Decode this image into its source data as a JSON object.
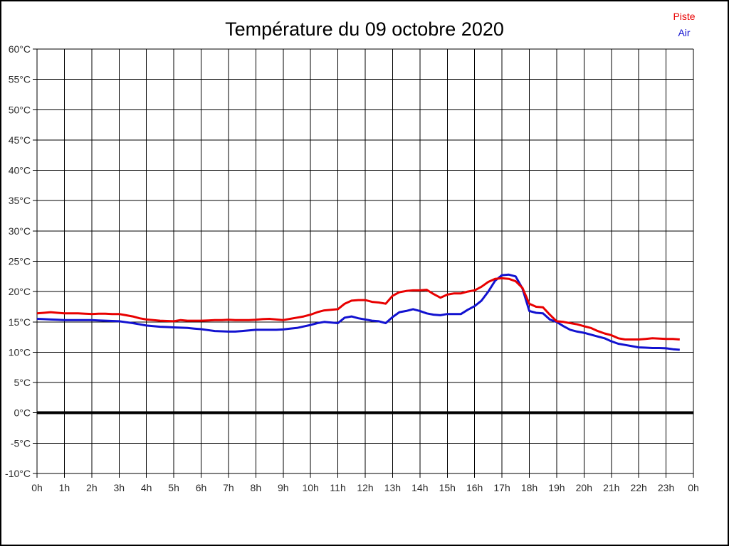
{
  "page": {
    "title": "Température du 09 octobre 2020"
  },
  "legend": {
    "items": [
      {
        "label": "Piste",
        "color": "#e80000"
      },
      {
        "label": "Air",
        "color": "#1212d0"
      }
    ]
  },
  "chart_data": {
    "type": "line",
    "title": "Température du 09 octobre 2020",
    "xlabel": "",
    "ylabel": "",
    "xlim": [
      0,
      24
    ],
    "ylim": [
      -10,
      60
    ],
    "grid": true,
    "legend_position": "top-right",
    "zero_line": {
      "value": 0,
      "emphasized": true
    },
    "x_ticks": {
      "values": [
        0,
        1,
        2,
        3,
        4,
        5,
        6,
        7,
        8,
        9,
        10,
        11,
        12,
        13,
        14,
        15,
        16,
        17,
        18,
        19,
        20,
        21,
        22,
        23,
        24
      ],
      "labels": [
        "0h",
        "1h",
        "2h",
        "3h",
        "4h",
        "5h",
        "6h",
        "7h",
        "8h",
        "9h",
        "10h",
        "11h",
        "12h",
        "13h",
        "14h",
        "15h",
        "16h",
        "17h",
        "18h",
        "19h",
        "20h",
        "21h",
        "22h",
        "23h",
        "0h"
      ]
    },
    "y_ticks": {
      "values": [
        60,
        55,
        50,
        45,
        40,
        35,
        30,
        25,
        20,
        15,
        10,
        5,
        0,
        -5,
        -10
      ],
      "labels": [
        "60°C",
        "55°C",
        "50°C",
        "45°C",
        "40°C",
        "35°C",
        "30°C",
        "25°C",
        "20°C",
        "15°C",
        "10°C",
        "5°C",
        "0°C",
        "-5°C",
        "-10°C"
      ]
    },
    "x": [
      0,
      0.25,
      0.5,
      0.75,
      1,
      1.25,
      1.5,
      1.75,
      2,
      2.25,
      2.5,
      2.75,
      3,
      3.25,
      3.5,
      3.75,
      4,
      4.25,
      4.5,
      4.75,
      5,
      5.25,
      5.5,
      5.75,
      6,
      6.25,
      6.5,
      6.75,
      7,
      7.25,
      7.5,
      7.75,
      8,
      8.25,
      8.5,
      8.75,
      9,
      9.25,
      9.5,
      9.75,
      10,
      10.25,
      10.5,
      10.75,
      11,
      11.25,
      11.5,
      11.75,
      12,
      12.25,
      12.5,
      12.75,
      13,
      13.25,
      13.5,
      13.75,
      14,
      14.25,
      14.5,
      14.75,
      15,
      15.25,
      15.5,
      15.75,
      16,
      16.25,
      16.5,
      16.75,
      17,
      17.25,
      17.5,
      17.75,
      18,
      18.25,
      18.5,
      18.75,
      19,
      19.25,
      19.5,
      19.75,
      20,
      20.25,
      20.5,
      20.75,
      21,
      21.25,
      21.5,
      21.75,
      22,
      22.25,
      22.5,
      22.75,
      23,
      23.25,
      23.5
    ],
    "series": [
      {
        "name": "Piste",
        "color": "#e80000",
        "values": [
          16.4,
          16.5,
          16.6,
          16.5,
          16.4,
          16.4,
          16.4,
          16.35,
          16.3,
          16.35,
          16.35,
          16.3,
          16.3,
          16.1,
          15.9,
          15.6,
          15.4,
          15.3,
          15.2,
          15.15,
          15.1,
          15.3,
          15.2,
          15.2,
          15.2,
          15.25,
          15.3,
          15.3,
          15.35,
          15.3,
          15.3,
          15.3,
          15.35,
          15.45,
          15.5,
          15.4,
          15.3,
          15.5,
          15.7,
          15.9,
          16.2,
          16.6,
          16.9,
          17.0,
          17.1,
          18.0,
          18.5,
          18.6,
          18.6,
          18.3,
          18.2,
          18.0,
          19.3,
          19.9,
          20.1,
          20.2,
          20.2,
          20.3,
          19.6,
          19.0,
          19.5,
          19.7,
          19.7,
          20.0,
          20.2,
          20.8,
          21.6,
          22.1,
          22.2,
          22.1,
          21.7,
          20.6,
          18.0,
          17.5,
          17.4,
          16.2,
          15.1,
          15.0,
          14.8,
          14.6,
          14.3,
          14.0,
          13.5,
          13.1,
          12.8,
          12.3,
          12.1,
          12.1,
          12.1,
          12.2,
          12.3,
          12.25,
          12.2,
          12.2,
          12.1
        ]
      },
      {
        "name": "Air",
        "color": "#1212d0",
        "values": [
          15.5,
          15.45,
          15.4,
          15.35,
          15.3,
          15.3,
          15.3,
          15.3,
          15.3,
          15.25,
          15.2,
          15.15,
          15.1,
          14.95,
          14.8,
          14.6,
          14.4,
          14.3,
          14.2,
          14.15,
          14.1,
          14.05,
          14.0,
          13.9,
          13.8,
          13.65,
          13.5,
          13.45,
          13.4,
          13.4,
          13.5,
          13.6,
          13.7,
          13.7,
          13.7,
          13.7,
          13.75,
          13.9,
          14.0,
          14.25,
          14.5,
          14.8,
          15.0,
          14.9,
          14.8,
          15.7,
          15.9,
          15.6,
          15.4,
          15.2,
          15.1,
          14.8,
          15.8,
          16.6,
          16.8,
          17.1,
          16.8,
          16.4,
          16.2,
          16.1,
          16.3,
          16.3,
          16.3,
          17.0,
          17.6,
          18.5,
          20.0,
          21.8,
          22.7,
          22.8,
          22.5,
          20.5,
          16.8,
          16.5,
          16.4,
          15.4,
          15.0,
          14.3,
          13.7,
          13.4,
          13.2,
          12.9,
          12.6,
          12.3,
          11.8,
          11.4,
          11.2,
          11.0,
          10.8,
          10.75,
          10.7,
          10.7,
          10.65,
          10.5,
          10.4
        ]
      }
    ]
  }
}
